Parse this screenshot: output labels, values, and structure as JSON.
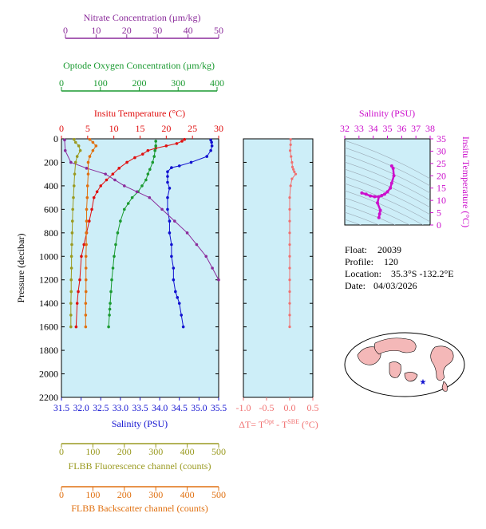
{
  "colors": {
    "nitrate": "#8b2c9b",
    "oxygen": "#1a9a30",
    "temperature": "#e01010",
    "salinity": "#1010d0",
    "fluorescence": "#9a9a20",
    "backscatter": "#e07010",
    "dt": "#f07070",
    "magenta": "#cc10cc",
    "plot_bg": "#cdeef8",
    "frame": "#808020"
  },
  "axes": {
    "nitrate": {
      "label": "Nitrate Concentration (µm/kg)",
      "ticks": [
        "0",
        "10",
        "20",
        "30",
        "40",
        "50"
      ]
    },
    "oxygen": {
      "label": "Optode Oxygen Concentration (µm/kg)",
      "ticks": [
        "0",
        "100",
        "200",
        "300",
        "400"
      ]
    },
    "temperature": {
      "label": "Insitu Temperature (°C)",
      "ticks": [
        "0",
        "5",
        "10",
        "15",
        "20",
        "25",
        "30"
      ]
    },
    "pressure": {
      "label": "Pressure (decibar)",
      "ticks": [
        "0",
        "200",
        "400",
        "600",
        "800",
        "1000",
        "1200",
        "1400",
        "1600",
        "1800",
        "2000",
        "2200"
      ]
    },
    "salinity": {
      "label": "Salinity (PSU)",
      "ticks": [
        "31.5",
        "32.0",
        "32.5",
        "33.0",
        "33.5",
        "34.0",
        "34.5",
        "35.0",
        "35.5"
      ]
    },
    "fluorescence": {
      "label": "FLBB Fluorescence channel (counts)",
      "ticks": [
        "0",
        "100",
        "200",
        "300",
        "400",
        "500"
      ]
    },
    "backscatter": {
      "label": "FLBB Backscatter channel (counts)",
      "ticks": [
        "0",
        "100",
        "200",
        "300",
        "400",
        "500"
      ]
    },
    "dt": {
      "label_prefix": "ΔT= T",
      "label_sup1": "Opt",
      "label_mid": " - T",
      "label_sup2": "SBE",
      "label_suffix": " (°C)",
      "ticks": [
        "-1.0",
        "-0.5",
        "0.0",
        "0.5"
      ]
    },
    "ts_salinity": {
      "label": "Salinity (PSU)",
      "ticks": [
        "32",
        "33",
        "34",
        "35",
        "36",
        "37",
        "38"
      ]
    },
    "ts_temperature": {
      "label": "Insitu Temperature (°C)",
      "ticks": [
        "0",
        "5",
        "10",
        "15",
        "20",
        "25",
        "30",
        "35"
      ]
    }
  },
  "info": {
    "float_label": "Float:",
    "float_value": "20039",
    "profile_label": "Profile:",
    "profile_value": "120",
    "location_label": "Location:",
    "location_value": "35.3°S  -132.2°E",
    "date_label": "Date:",
    "date_value": "04/03/2026"
  },
  "chart_data": [
    {
      "type": "line",
      "ylabel": "Pressure (decibar)",
      "ylim": [
        2200,
        0
      ],
      "series": [
        {
          "name": "Insitu Temperature",
          "xlim": [
            0,
            30
          ],
          "x": [
            23.5,
            23.0,
            22.0,
            20.0,
            18.0,
            16.5,
            15.5,
            14.0,
            12.5,
            11.0,
            9.8,
            8.6,
            7.5,
            6.8,
            6.2,
            5.8,
            5.3,
            4.8,
            4.3,
            3.8,
            3.5,
            3.2,
            3.0,
            2.8
          ],
          "y": [
            5,
            20,
            40,
            60,
            80,
            100,
            130,
            160,
            200,
            250,
            300,
            350,
            400,
            450,
            500,
            600,
            700,
            800,
            900,
            1000,
            1200,
            1300,
            1400,
            1600
          ]
        },
        {
          "name": "Salinity",
          "xlim": [
            31.5,
            35.5
          ],
          "x": [
            35.3,
            35.32,
            35.33,
            35.3,
            35.2,
            34.8,
            34.5,
            34.3,
            34.2,
            34.2,
            34.2,
            34.25,
            34.2,
            34.2,
            34.25,
            34.25,
            34.3,
            34.3,
            34.35,
            34.35,
            34.4,
            34.45,
            34.5,
            34.55,
            34.6
          ],
          "y": [
            10,
            30,
            60,
            100,
            150,
            200,
            230,
            245,
            280,
            320,
            370,
            420,
            500,
            600,
            700,
            800,
            900,
            1000,
            1100,
            1200,
            1300,
            1350,
            1400,
            1500,
            1600
          ]
        },
        {
          "name": "Optode Oxygen Concentration",
          "xlim": [
            0,
            400
          ],
          "x": [
            240,
            240,
            238,
            236,
            232,
            225,
            220,
            215,
            205,
            195,
            180,
            170,
            160,
            150,
            143,
            138,
            134,
            131,
            128,
            126,
            124,
            123,
            122,
            120
          ],
          "y": [
            20,
            60,
            100,
            150,
            200,
            260,
            300,
            350,
            400,
            450,
            500,
            550,
            600,
            700,
            800,
            900,
            1000,
            1100,
            1200,
            1300,
            1400,
            1450,
            1500,
            1600
          ]
        },
        {
          "name": "Nitrate Concentration",
          "xlim": [
            0,
            50
          ],
          "x": [
            1.0,
            1.2,
            3.0,
            8.0,
            14.0,
            17.0,
            20.0,
            24.0,
            28.0,
            32.0,
            36.0,
            40.0,
            43.0,
            46.0,
            48.0,
            50.0
          ],
          "y": [
            10,
            100,
            200,
            250,
            300,
            350,
            400,
            450,
            500,
            600,
            700,
            800,
            900,
            1000,
            1100,
            1200
          ]
        },
        {
          "name": "FLBB Fluorescence channel",
          "xlim": [
            0,
            500
          ],
          "x": [
            40,
            45,
            55,
            60,
            50,
            45,
            42,
            40,
            38,
            36,
            35,
            34,
            33,
            32,
            32,
            31,
            31,
            30,
            30,
            30
          ],
          "y": [
            5,
            30,
            60,
            100,
            150,
            200,
            300,
            400,
            500,
            600,
            700,
            800,
            900,
            1000,
            1100,
            1200,
            1300,
            1400,
            1500,
            1600
          ]
        },
        {
          "name": "FLBB Backscatter channel",
          "xlim": [
            0,
            500
          ],
          "x": [
            90,
            100,
            110,
            100,
            90,
            85,
            85,
            83,
            82,
            80,
            80,
            79,
            79,
            78,
            78,
            78,
            78,
            77,
            77,
            77
          ],
          "y": [
            5,
            30,
            60,
            100,
            150,
            200,
            300,
            400,
            500,
            600,
            700,
            800,
            900,
            1000,
            1100,
            1200,
            1300,
            1400,
            1500,
            1600
          ]
        }
      ]
    },
    {
      "type": "line",
      "xlim": [
        -1.0,
        0.5
      ],
      "ylim": [
        2200,
        0
      ],
      "x": [
        0.02,
        0.02,
        0.01,
        0.03,
        0.05,
        0.06,
        0.08,
        0.1,
        0.13,
        0.05,
        0.02,
        0.0,
        0.0,
        0.0,
        0.0,
        0.0,
        0.0,
        0.0,
        0.0,
        0.0,
        0.0,
        0.0,
        0.0
      ],
      "y": [
        5,
        50,
        100,
        150,
        200,
        240,
        260,
        280,
        300,
        340,
        400,
        500,
        600,
        700,
        800,
        900,
        1000,
        1100,
        1200,
        1300,
        1400,
        1500,
        1600
      ]
    },
    {
      "type": "scatter",
      "xlim": [
        32,
        38
      ],
      "ylim": [
        0,
        35
      ],
      "x": [
        35.3,
        35.4,
        35.45,
        35.3,
        35.2,
        35.0,
        34.8,
        34.6,
        34.4,
        34.1,
        33.8,
        33.5,
        33.2,
        34.3,
        34.5,
        34.45,
        34.4
      ],
      "y": [
        24,
        23,
        20,
        17,
        15,
        13.5,
        12.5,
        12,
        11.5,
        11.5,
        11.8,
        12.5,
        13,
        9,
        6,
        4.5,
        3
      ]
    }
  ]
}
